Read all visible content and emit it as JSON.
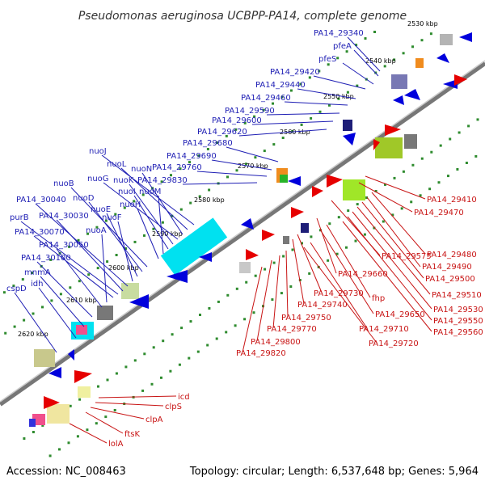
{
  "title": "Pseudomonas aeruginosa UCBPP-PA14, complete genome",
  "accession": "Accession: NC_008463",
  "summary": "Topology: circular; Length: 6,537,648 bp; Genes: 5,964",
  "colors": {
    "forward": "#0000dc",
    "reverse": "#e60000",
    "backbone": "#888888",
    "tick_dot": "#2e8b2e"
  },
  "ticks": [
    "2530 kbp",
    "2540 kbp",
    "2550 kbp",
    "2560 kbp",
    "2570 kbp",
    "2580 kbp",
    "2590 kbp",
    "2600 kbp",
    "2610 kbp",
    "2620 kbp"
  ],
  "forward_labels": [
    "PA14_29340",
    "pfeA",
    "pfeS",
    "PA14_29420",
    "PA14_29440",
    "PA14_29460",
    "PA14_29590",
    "PA14_29600",
    "PA14_29620",
    "PA14_29680",
    "PA14_29690",
    "PA14_29760",
    "PA14_29830",
    "nuoJ",
    "nuoL",
    "nuoN",
    "nuoG",
    "nuoK",
    "nuoI",
    "nuoM",
    "nuoH",
    "nuoB",
    "nuoD",
    "nuoE",
    "nuoF",
    "PA14_30040",
    "PA14_30030",
    "purB",
    "PA14_30070",
    "nuoA",
    "PA14_30050",
    "PA14_30100",
    "mnmA",
    "idh",
    "cspD"
  ],
  "reverse_labels": [
    "PA14_29410",
    "PA14_29470",
    "PA14_29480",
    "PA14_29490",
    "PA14_29500",
    "PA14_29510",
    "PA14_29530",
    "PA14_29550",
    "PA14_29560",
    "PA14_29575",
    "PA14_29660",
    "fhp",
    "PA14_29650",
    "PA14_29730",
    "PA14_29740",
    "PA14_29710",
    "PA14_29720",
    "PA14_29750",
    "PA14_29770",
    "PA14_29800",
    "PA14_29820",
    "icd",
    "clpS",
    "clpA",
    "ftsK",
    "lolA"
  ]
}
